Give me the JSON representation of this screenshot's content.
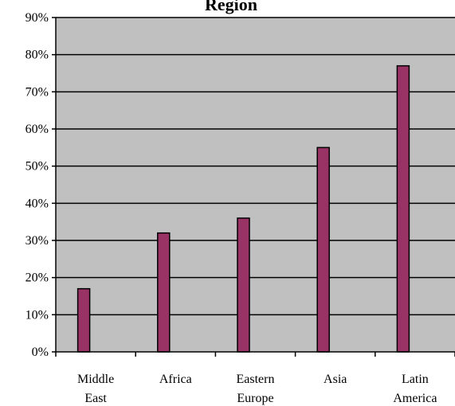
{
  "colors": {
    "plot_background": "#c0c0c0",
    "bar_fill": "#993366",
    "gridline": "#000000",
    "axis": "#000000"
  },
  "chart_data": {
    "type": "bar",
    "title": "Region",
    "xlabel": "",
    "ylabel": "",
    "categories": [
      [
        "Middle",
        "East"
      ],
      [
        "Africa"
      ],
      [
        "Eastern",
        "Europe"
      ],
      [
        "Asia"
      ],
      [
        "Latin",
        "America"
      ]
    ],
    "values": [
      17,
      32,
      36,
      55,
      77
    ],
    "ylim": [
      0,
      90
    ],
    "ytick_step": 10,
    "ytick_labels": [
      "0%",
      "10%",
      "20%",
      "30%",
      "40%",
      "50%",
      "60%",
      "70%",
      "80%",
      "90%"
    ],
    "grid": true,
    "legend": "none"
  }
}
